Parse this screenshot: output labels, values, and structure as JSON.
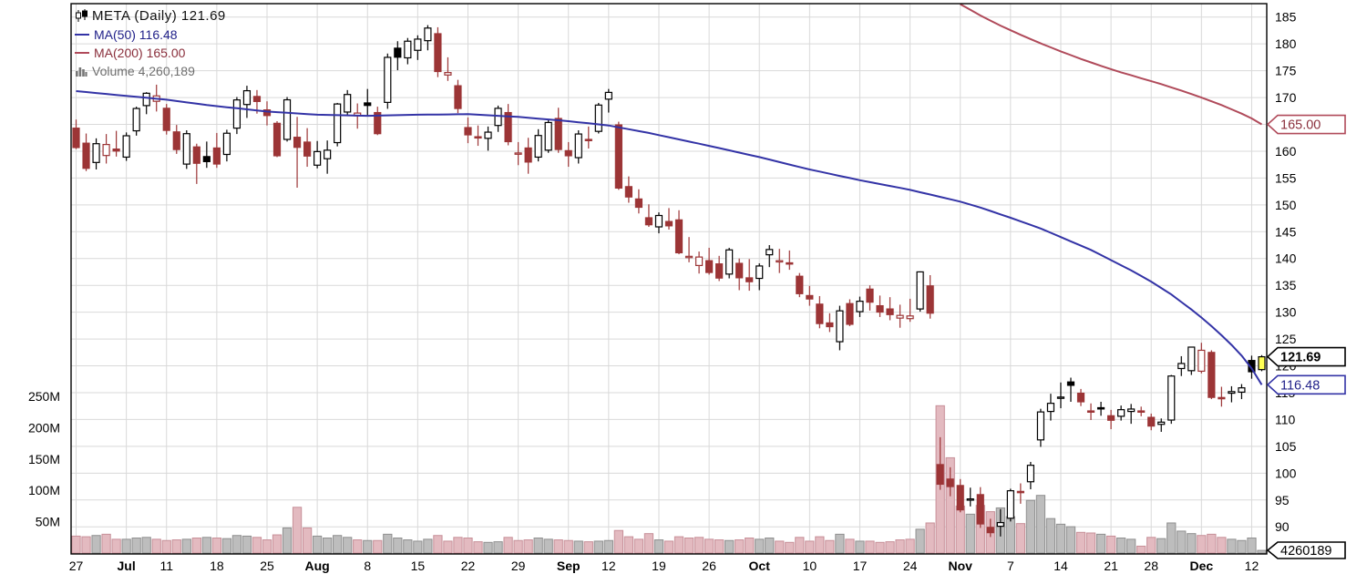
{
  "legend": {
    "title": "META (Daily) 121.69",
    "ma50_label": "MA(50) 116.48",
    "ma200_label": "MA(200) 165.00",
    "volume_label": "Volume 4,260,189"
  },
  "axis_tags": {
    "ma200": "165.00",
    "last_price": "121.69",
    "ma50": "116.48",
    "volume": "4260189"
  },
  "price_axis": {
    "min": 90,
    "max": 185,
    "step": 5
  },
  "volume_axis": {
    "labels": [
      {
        "text": "250M",
        "value": 250
      },
      {
        "text": "200M",
        "value": 200
      },
      {
        "text": "150M",
        "value": 150
      },
      {
        "text": "100M",
        "value": 100
      },
      {
        "text": "50M",
        "value": 50
      }
    ]
  },
  "colors": {
    "grid": "#d9d9d9",
    "axis_text": "#000000",
    "border": "#000000",
    "ma50": "#3333a6",
    "ma200": "#b04a5a",
    "ma50_text": "#22228a",
    "ma200_text": "#8a2f3c",
    "candle_up": "#000000",
    "candle_down": "#9c3536",
    "vol_up_fill": "#bdbdbd",
    "vol_up_edge": "#8f8f8f",
    "vol_down_fill": "#e3bac0",
    "vol_down_edge": "#c78f98",
    "last_candle_fill": "#ffff55"
  },
  "chart_data": {
    "type": "candlestick+volume",
    "symbol": "META",
    "timeframe": "Daily",
    "last_price": 121.69,
    "ma50_value": 116.48,
    "ma200_value": 165.0,
    "volume_value": 4260189,
    "ylim": [
      88,
      187.5
    ],
    "volume_unit": "millions",
    "x_ticks": [
      [
        0,
        "27"
      ],
      [
        5,
        "Jul"
      ],
      [
        9,
        "11"
      ],
      [
        14,
        "18"
      ],
      [
        19,
        "25"
      ],
      [
        24,
        "Aug"
      ],
      [
        29,
        "8"
      ],
      [
        34,
        "15"
      ],
      [
        39,
        "22"
      ],
      [
        44,
        "29"
      ],
      [
        49,
        "Sep"
      ],
      [
        53,
        "12"
      ],
      [
        58,
        "19"
      ],
      [
        63,
        "26"
      ],
      [
        68,
        "Oct"
      ],
      [
        73,
        "10"
      ],
      [
        78,
        "17"
      ],
      [
        83,
        "24"
      ],
      [
        88,
        "Nov"
      ],
      [
        93,
        "7"
      ],
      [
        98,
        "14"
      ],
      [
        103,
        "21"
      ],
      [
        107,
        "28"
      ],
      [
        112,
        "Dec"
      ],
      [
        117,
        "12"
      ]
    ],
    "candles": [
      [
        164.3,
        165.9,
        160.4,
        160.68,
        27
      ],
      [
        161.5,
        163.3,
        156.3,
        156.81,
        26
      ],
      [
        157.9,
        162.4,
        156.6,
        161.4,
        28
      ],
      [
        159.2,
        163.2,
        157.7,
        161.25,
        30
      ],
      [
        160.4,
        163.8,
        159.0,
        160.03,
        22
      ],
      [
        158.9,
        163.5,
        158.2,
        162.88,
        22
      ],
      [
        163.8,
        168.3,
        162.9,
        167.96,
        24
      ],
      [
        168.5,
        171.0,
        166.9,
        170.8,
        25
      ],
      [
        169.3,
        172.4,
        167.4,
        170.31,
        22
      ],
      [
        168.0,
        168.8,
        163.1,
        163.88,
        20
      ],
      [
        163.6,
        164.9,
        159.5,
        160.31,
        21
      ],
      [
        157.6,
        163.9,
        156.7,
        163.27,
        22
      ],
      [
        160.8,
        161.4,
        153.9,
        157.75,
        24
      ],
      [
        159.0,
        161.8,
        156.9,
        158.06,
        25
      ],
      [
        160.6,
        163.4,
        156.9,
        157.61,
        24
      ],
      [
        159.4,
        164.0,
        158.1,
        163.35,
        23
      ],
      [
        164.3,
        170.1,
        163.2,
        169.56,
        28
      ],
      [
        168.7,
        172.2,
        166.2,
        171.27,
        27
      ],
      [
        170.2,
        171.4,
        167.0,
        169.27,
        25
      ],
      [
        167.7,
        169.3,
        164.8,
        166.65,
        21
      ],
      [
        165.2,
        165.6,
        158.9,
        159.15,
        29
      ],
      [
        162.2,
        170.1,
        161.8,
        169.58,
        40
      ],
      [
        162.6,
        166.4,
        153.2,
        160.72,
        73
      ],
      [
        161.7,
        164.3,
        157.1,
        159.1,
        40
      ],
      [
        157.4,
        161.9,
        156.8,
        159.93,
        27
      ],
      [
        158.6,
        162.0,
        155.8,
        160.19,
        24
      ],
      [
        161.6,
        169.0,
        160.9,
        168.8,
        28
      ],
      [
        167.3,
        171.4,
        166.6,
        170.57,
        25
      ],
      [
        166.6,
        168.9,
        164.2,
        167.11,
        21
      ],
      [
        169.0,
        171.6,
        166.5,
        168.53,
        20
      ],
      [
        167.2,
        168.3,
        163.0,
        163.27,
        20
      ],
      [
        169.1,
        178.2,
        167.9,
        177.49,
        30
      ],
      [
        179.2,
        180.5,
        175.1,
        177.52,
        24
      ],
      [
        177.4,
        181.1,
        176.2,
        180.5,
        21
      ],
      [
        178.8,
        181.6,
        177.0,
        180.89,
        19
      ],
      [
        180.6,
        183.5,
        178.8,
        182.95,
        22
      ],
      [
        181.9,
        183.1,
        173.8,
        174.85,
        28
      ],
      [
        174.2,
        177.5,
        173.1,
        174.66,
        19
      ],
      [
        172.2,
        173.3,
        167.1,
        167.96,
        25
      ],
      [
        164.4,
        166.3,
        161.5,
        163.05,
        24
      ],
      [
        162.7,
        164.8,
        161.0,
        162.51,
        18
      ],
      [
        162.4,
        164.6,
        160.1,
        163.55,
        17
      ],
      [
        164.8,
        168.5,
        163.6,
        167.99,
        18
      ],
      [
        167.2,
        168.8,
        161.1,
        161.78,
        25
      ],
      [
        159.5,
        161.7,
        157.4,
        159.67,
        20
      ],
      [
        160.6,
        162.5,
        155.8,
        157.98,
        21
      ],
      [
        158.9,
        164.1,
        158.1,
        162.93,
        24
      ],
      [
        160.2,
        165.8,
        159.7,
        165.35,
        22
      ],
      [
        166.1,
        168.1,
        159.7,
        160.32,
        21
      ],
      [
        160.1,
        161.7,
        157.1,
        159.15,
        20
      ],
      [
        158.8,
        163.9,
        157.7,
        163.21,
        19
      ],
      [
        162.2,
        164.6,
        160.5,
        162.06,
        18
      ],
      [
        163.7,
        169.0,
        163.3,
        168.6,
        19
      ],
      [
        169.7,
        171.6,
        167.2,
        170.96,
        20
      ],
      [
        164.9,
        165.5,
        152.8,
        153.13,
        36
      ],
      [
        153.4,
        155.3,
        150.4,
        151.47,
        26
      ],
      [
        151.1,
        152.9,
        148.4,
        149.55,
        22
      ],
      [
        147.6,
        150.1,
        145.9,
        146.29,
        31
      ],
      [
        145.9,
        148.6,
        144.7,
        148.02,
        21
      ],
      [
        146.9,
        149.4,
        145.4,
        146.09,
        19
      ],
      [
        147.2,
        149.0,
        140.8,
        141.07,
        26
      ],
      [
        140.3,
        144.0,
        139.3,
        140.41,
        24
      ],
      [
        138.7,
        141.3,
        137.2,
        140.28,
        25
      ],
      [
        139.6,
        142.0,
        137.0,
        137.4,
        22
      ],
      [
        139.0,
        140.5,
        135.8,
        136.36,
        21
      ],
      [
        137.1,
        142.0,
        136.3,
        141.61,
        20
      ],
      [
        139.1,
        140.0,
        134.1,
        136.41,
        21
      ],
      [
        136.4,
        139.9,
        134.0,
        135.68,
        24
      ],
      [
        136.3,
        139.1,
        134.1,
        138.61,
        22
      ],
      [
        140.7,
        142.5,
        138.4,
        141.68,
        24
      ],
      [
        139.6,
        141.8,
        137.3,
        139.6,
        19
      ],
      [
        139.2,
        141.5,
        137.9,
        139.07,
        17
      ],
      [
        136.7,
        137.3,
        132.8,
        133.45,
        25
      ],
      [
        133.1,
        134.9,
        131.2,
        132.46,
        19
      ],
      [
        131.5,
        133.0,
        127.0,
        127.88,
        26
      ],
      [
        128.0,
        129.8,
        126.3,
        127.3,
        20
      ],
      [
        124.5,
        131.2,
        122.9,
        130.25,
        30
      ],
      [
        131.6,
        132.4,
        127.4,
        127.74,
        22
      ],
      [
        130.1,
        132.9,
        129.1,
        132.04,
        19
      ],
      [
        134.3,
        135.0,
        130.3,
        131.87,
        19
      ],
      [
        131.2,
        133.1,
        129.1,
        130.02,
        17
      ],
      [
        130.6,
        132.8,
        128.5,
        129.55,
        18
      ],
      [
        128.9,
        131.4,
        127.1,
        129.4,
        21
      ],
      [
        128.8,
        132.5,
        128.2,
        129.3,
        22
      ],
      [
        130.6,
        137.6,
        130.1,
        137.51,
        38
      ],
      [
        134.9,
        136.9,
        128.8,
        129.82,
        48
      ],
      [
        101.6,
        106.7,
        96.9,
        97.94,
        235
      ],
      [
        98.9,
        101.1,
        95.7,
        97.5,
        152
      ],
      [
        97.7,
        98.9,
        92.7,
        93.16,
        75
      ],
      [
        95.1,
        97.3,
        93.8,
        95.2,
        62
      ],
      [
        96.0,
        97.4,
        89.8,
        90.54,
        76
      ],
      [
        89.9,
        91.5,
        88.1,
        88.91,
        66
      ],
      [
        90.1,
        93.3,
        88.2,
        90.79,
        72
      ],
      [
        91.6,
        97.1,
        91.0,
        96.72,
        58
      ],
      [
        96.6,
        98.1,
        94.3,
        96.47,
        47
      ],
      [
        98.4,
        102.1,
        97.0,
        101.47,
        84
      ],
      [
        106.2,
        112.0,
        104.9,
        111.41,
        92
      ],
      [
        111.5,
        114.8,
        109.8,
        113.02,
        55
      ],
      [
        114.0,
        116.9,
        112.1,
        114.18,
        46
      ],
      [
        117.0,
        117.8,
        113.3,
        116.37,
        42
      ],
      [
        114.9,
        115.7,
        112.5,
        113.3,
        33
      ],
      [
        111.6,
        113.0,
        109.9,
        111.4,
        32
      ],
      [
        112.2,
        113.3,
        110.7,
        112.05,
        30
      ],
      [
        110.7,
        111.8,
        108.2,
        109.86,
        27
      ],
      [
        110.6,
        112.6,
        109.8,
        111.83,
        24
      ],
      [
        111.5,
        112.9,
        109.2,
        111.95,
        22
      ],
      [
        111.6,
        112.4,
        110.6,
        111.41,
        11
      ],
      [
        110.4,
        111.1,
        108.0,
        108.78,
        25
      ],
      [
        109.1,
        110.2,
        107.7,
        109.51,
        23
      ],
      [
        109.9,
        118.3,
        109.2,
        118.1,
        48
      ],
      [
        119.5,
        121.8,
        118.1,
        120.44,
        35
      ],
      [
        119.1,
        123.5,
        118.3,
        123.49,
        31
      ],
      [
        119.0,
        124.3,
        118.6,
        122.9,
        28
      ],
      [
        122.5,
        122.9,
        113.8,
        114.12,
        30
      ],
      [
        114.1,
        116.1,
        112.4,
        113.93,
        25
      ],
      [
        114.9,
        116.2,
        113.2,
        115.2,
        22
      ],
      [
        115.1,
        116.6,
        113.8,
        115.9,
        20
      ],
      [
        121.0,
        121.9,
        117.6,
        118.9,
        24
      ],
      [
        119.3,
        122.0,
        119.0,
        121.69,
        4.26
      ]
    ],
    "ma50_anchors": [
      [
        0,
        171.2
      ],
      [
        9,
        169.6
      ],
      [
        13,
        168.6
      ],
      [
        19,
        167.4
      ],
      [
        24,
        166.8
      ],
      [
        29,
        166.6
      ],
      [
        34,
        166.8
      ],
      [
        39,
        166.9
      ],
      [
        44,
        166.4
      ],
      [
        49,
        165.6
      ],
      [
        53,
        164.8
      ],
      [
        57,
        163.4
      ],
      [
        60,
        162.2
      ],
      [
        63,
        161.0
      ],
      [
        68,
        158.9
      ],
      [
        73,
        156.6
      ],
      [
        78,
        154.6
      ],
      [
        83,
        152.8
      ],
      [
        88,
        150.6
      ],
      [
        90,
        149.5
      ],
      [
        93,
        147.6
      ],
      [
        96,
        145.6
      ],
      [
        98,
        144.0
      ],
      [
        101,
        141.6
      ],
      [
        103,
        139.7
      ],
      [
        105,
        137.8
      ],
      [
        107,
        135.7
      ],
      [
        109,
        133.3
      ],
      [
        110,
        131.9
      ],
      [
        111,
        130.5
      ],
      [
        112,
        129.0
      ],
      [
        113,
        127.4
      ],
      [
        114,
        125.7
      ],
      [
        115,
        123.9
      ],
      [
        116,
        121.9
      ],
      [
        117,
        119.5
      ],
      [
        118,
        116.48
      ]
    ],
    "ma200_anchors": [
      [
        88,
        187.4
      ],
      [
        90,
        185.3
      ],
      [
        92,
        183.4
      ],
      [
        94,
        181.7
      ],
      [
        96,
        180.1
      ],
      [
        98,
        178.6
      ],
      [
        100,
        177.2
      ],
      [
        102,
        175.9
      ],
      [
        104,
        174.7
      ],
      [
        106,
        173.6
      ],
      [
        108,
        172.5
      ],
      [
        110,
        171.3
      ],
      [
        112,
        170.0
      ],
      [
        114,
        168.6
      ],
      [
        116,
        167.0
      ],
      [
        117,
        166.1
      ],
      [
        118,
        165.0
      ]
    ]
  }
}
